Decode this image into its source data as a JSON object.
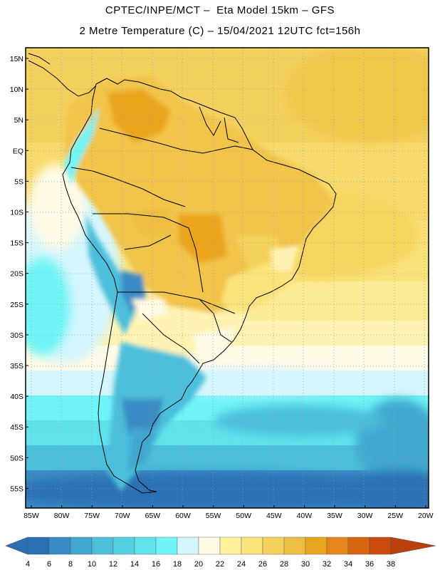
{
  "header": {
    "line1": "CPTEC/INPE/MCT –  Eta Model 15km – GFS",
    "line2": "2 Metre Temperature (C) – 15/04/2021 12UTC fct=156h"
  },
  "map": {
    "region": "South America",
    "lat_labels": [
      "15N",
      "10N",
      "5N",
      "EQ",
      "5S",
      "10S",
      "15S",
      "20S",
      "25S",
      "30S",
      "35S",
      "40S",
      "45S",
      "50S",
      "55S"
    ],
    "lon_labels": [
      "85W",
      "80W",
      "75W",
      "70W",
      "65W",
      "60W",
      "55W",
      "50W",
      "45W",
      "40W",
      "35W",
      "30W",
      "25W",
      "20W"
    ]
  },
  "colorbar": {
    "unit": "C",
    "ticks": [
      "4",
      "6",
      "8",
      "10",
      "12",
      "14",
      "16",
      "18",
      "20",
      "22",
      "24",
      "26",
      "28",
      "30",
      "32",
      "34",
      "36",
      "38"
    ],
    "colors": [
      "#2a6fb4",
      "#3a8cc4",
      "#40a7cf",
      "#4cbfdb",
      "#55d2e2",
      "#5ee3ec",
      "#6ff5f7",
      "#d3f5fb",
      "#fffbe6",
      "#fff19a",
      "#fbe37c",
      "#f5d25c",
      "#eebd43",
      "#eaa51f",
      "#e4861a",
      "#d96411",
      "#c94a0a",
      "#bb3f0b"
    ]
  }
}
